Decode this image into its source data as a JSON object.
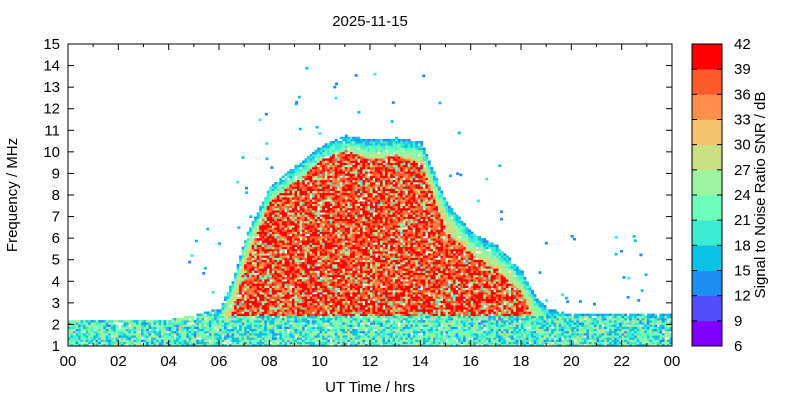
{
  "chart_data": {
    "type": "heatmap",
    "title": "2025-11-15",
    "xlabel": "UT Time / hrs",
    "ylabel": "Frequency / MHz",
    "colorbar_label": "Signal to Noise Ratio SNR / dB",
    "xlim": [
      0,
      24
    ],
    "ylim": [
      1,
      15
    ],
    "x_ticks": [
      "00",
      "02",
      "04",
      "06",
      "08",
      "10",
      "12",
      "14",
      "16",
      "18",
      "20",
      "22",
      "00"
    ],
    "y_ticks": [
      1,
      2,
      3,
      4,
      5,
      6,
      7,
      8,
      9,
      10,
      11,
      12,
      13,
      14,
      15
    ],
    "colorbar_range": [
      6,
      42
    ],
    "colorbar_ticks": [
      6,
      9,
      12,
      15,
      18,
      21,
      24,
      27,
      30,
      33,
      36,
      39,
      42
    ],
    "colorbar_colors": [
      "#8000ff",
      "#4f4ffb",
      "#1f8ef2",
      "#0cc2e4",
      "#3cecd2",
      "#6dffbc",
      "#9bf4a0",
      "#c9e182",
      "#f5c36a",
      "#ff8f4b",
      "#ff5a2d",
      "#ff0000"
    ],
    "grid": false,
    "occupancy_profile": {
      "hours": [
        0,
        4,
        5,
        6,
        6.5,
        7,
        8,
        9,
        10,
        11,
        12,
        13,
        14,
        15,
        16,
        17,
        18,
        18.5,
        19,
        20,
        24
      ],
      "upper_mhz": [
        2.2,
        2.2,
        2.4,
        2.7,
        4,
        6,
        8.4,
        9.3,
        10.2,
        10.7,
        10.5,
        10.6,
        10.4,
        7.6,
        6.2,
        5.6,
        4.4,
        3.3,
        2.7,
        2.4,
        2.5
      ],
      "strong_upper_mhz": [
        0,
        0,
        0,
        0,
        2.6,
        4.8,
        7.7,
        8.6,
        9.6,
        10,
        9.6,
        9.8,
        9.4,
        6.2,
        5.2,
        4.5,
        3.4,
        2,
        0,
        0,
        0
      ]
    }
  }
}
